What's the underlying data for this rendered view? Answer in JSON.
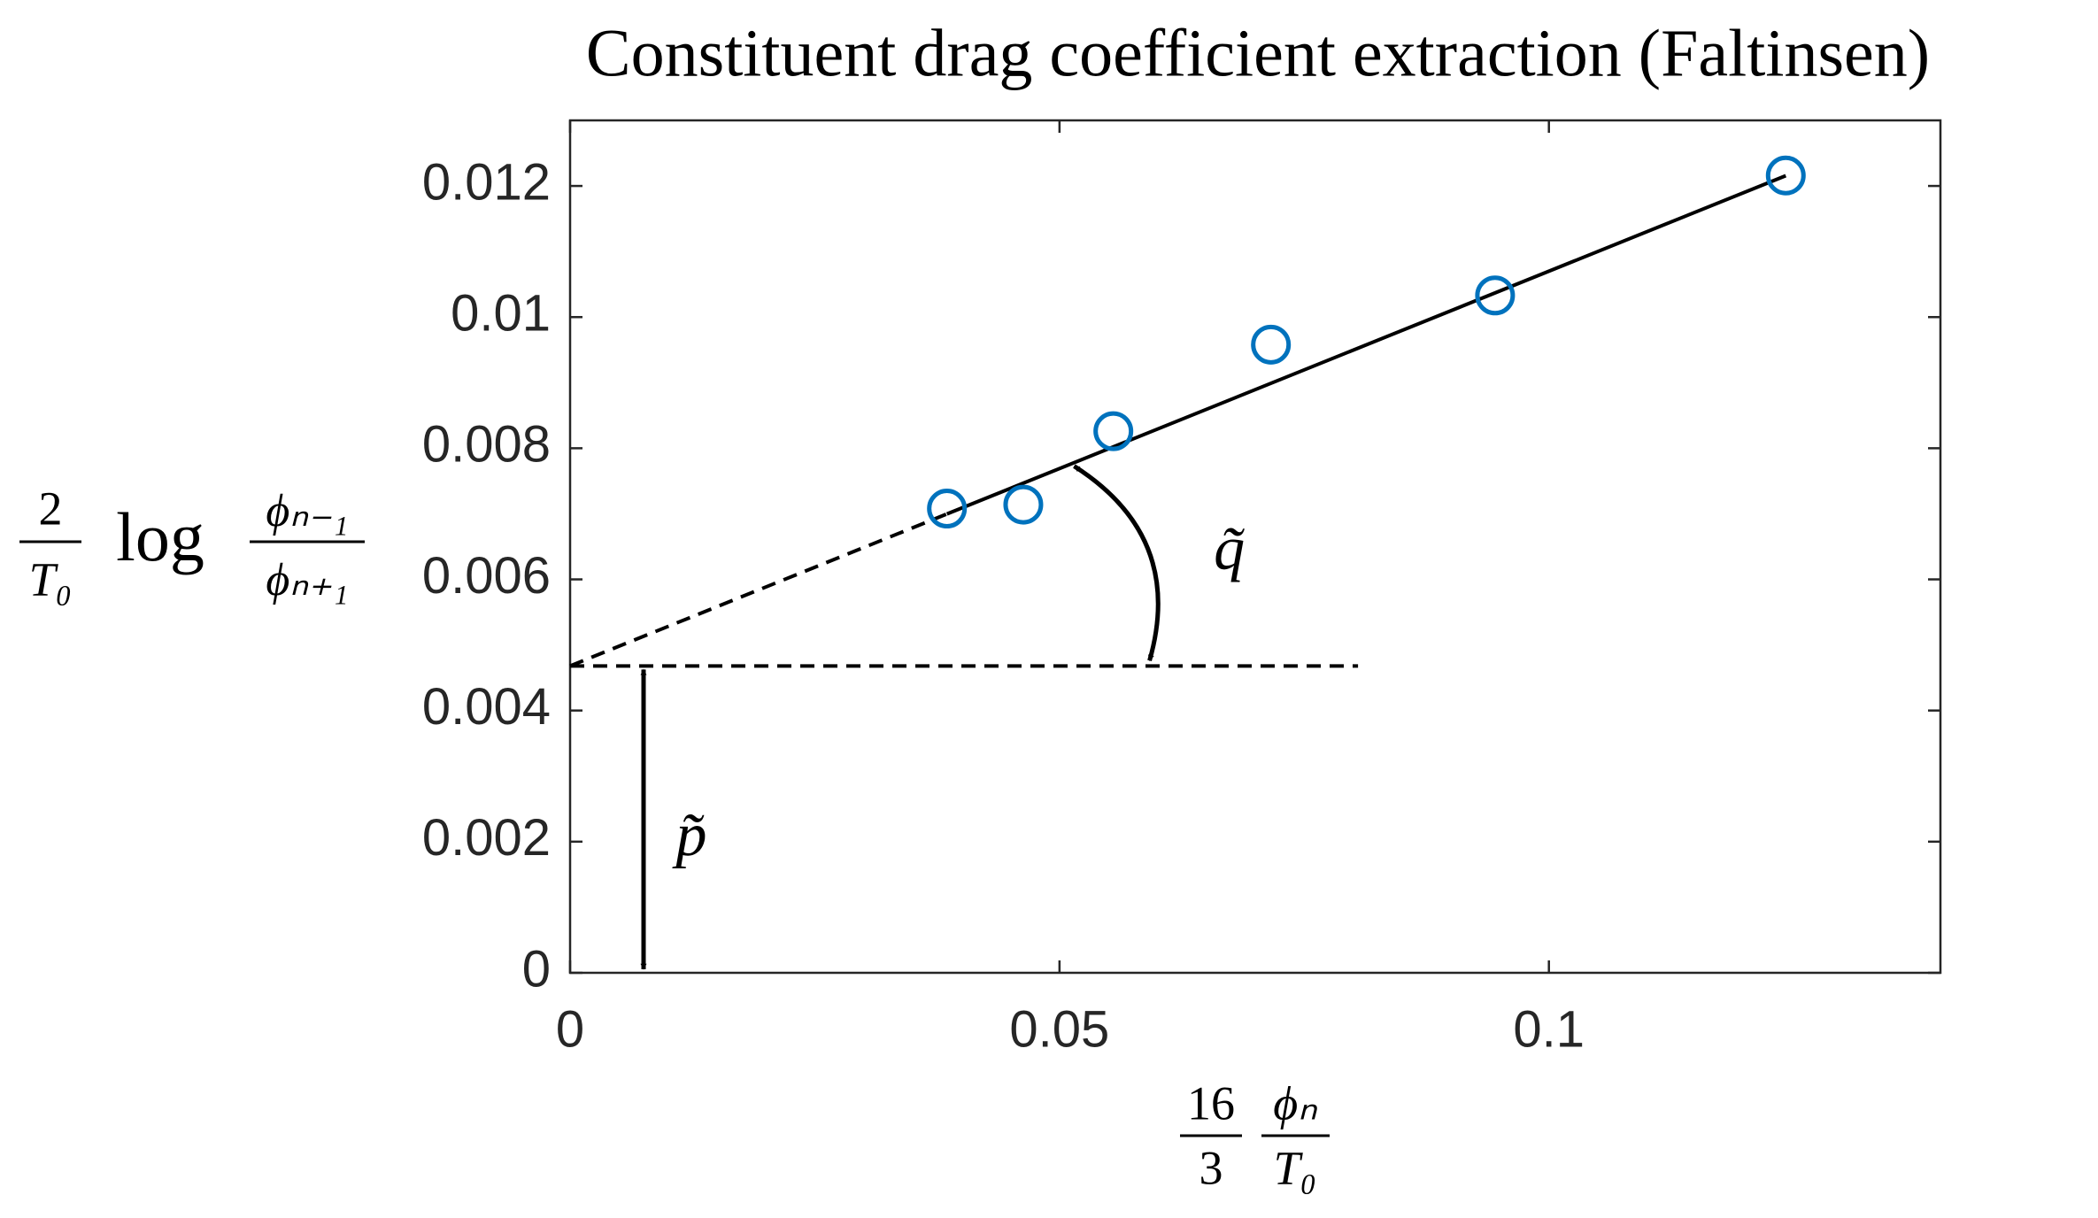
{
  "chart_data": {
    "type": "scatter",
    "title": "Constituent drag coefficient extraction (Faltinsen)",
    "xlabel": {
      "coef_num": "16",
      "coef_den": "3",
      "frac_num": "ϕₙ",
      "frac_den": "T₀"
    },
    "ylabel": {
      "coef_num": "2",
      "coef_den": "T₀",
      "func": "log",
      "frac_num": "ϕₙ₋₁",
      "frac_den": "ϕₙ₊₁"
    },
    "x": [
      0.0385,
      0.0463,
      0.0555,
      0.0716,
      0.0945,
      0.1242
    ],
    "y": [
      0.00708,
      0.00714,
      0.00826,
      0.00958,
      0.01033,
      0.01216
    ],
    "color": "#0072bd",
    "fit": {
      "intercept": 0.00468,
      "slope": 0.0602,
      "baseline_x_end": 0.0805
    },
    "annotations": {
      "slope_angle": "q̃",
      "intercept": "p̃"
    },
    "xlim": [
      0,
      0.14
    ],
    "ylim": [
      0,
      0.013
    ],
    "xticks": [
      0,
      0.05,
      0.1
    ],
    "yticks": [
      0,
      0.002,
      0.004,
      0.006,
      0.008,
      0.01,
      0.012
    ]
  }
}
